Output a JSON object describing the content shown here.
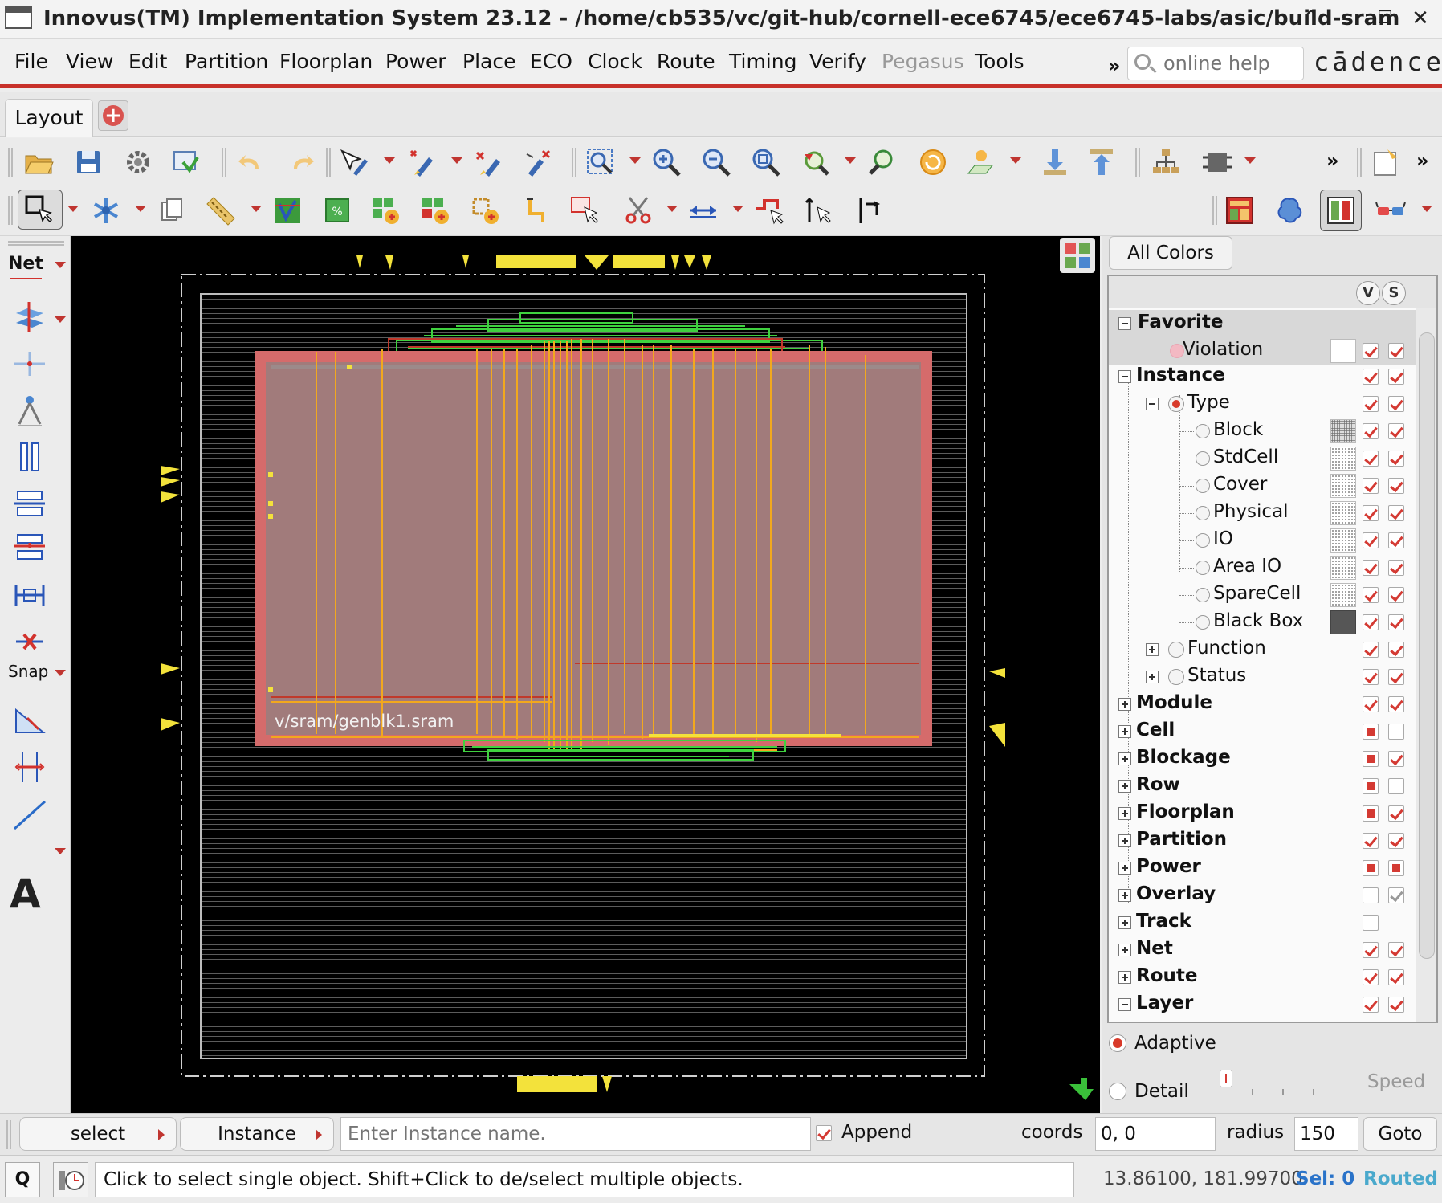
{
  "window": {
    "title": "Innovus(TM) Implementation System 23.12 - /home/cb535/vc/git-hub/cornell-ece6745/ece6745-labs/asic/build-sram",
    "minimize_icon": "chevron-up-icon",
    "restore_icon": "minimize-icon",
    "maximize_icon": "maximize-icon",
    "close_icon": "close-icon"
  },
  "menu": {
    "items": [
      "File",
      "Edit",
      "Partition",
      "Floorplan",
      "Power",
      "Place",
      "ECO",
      "Clock",
      "Route",
      "Timing",
      "Verify",
      "Pegasus",
      "Tools"
    ],
    "view": "View",
    "overflow": "»",
    "search_placeholder": "online help",
    "logo": "cādence"
  },
  "tabs": {
    "active": "Layout",
    "add_icon": "add-tab-icon"
  },
  "left_palette": {
    "net_label": "Net",
    "snap_label": "Snap",
    "text_label": "A"
  },
  "layout_view": {
    "instance_label": "v/sram/genblk1.sram",
    "colors": {
      "die_fill": "#a17b7b",
      "die_edge": "#d56b6b",
      "wire": "#f2a81e",
      "green_wire": "#3fd13f",
      "pin": "#f4e43a"
    }
  },
  "control_panel": {
    "all_colors": "All Colors",
    "v_label": "V",
    "s_label": "S",
    "tree": [
      {
        "label": "Favorite",
        "bold": true,
        "state": "minus"
      },
      {
        "label": "Violation",
        "bold": false
      },
      {
        "label": "Instance",
        "bold": true,
        "state": "minus"
      },
      {
        "label": "Type",
        "bold": false,
        "state": "minus"
      },
      {
        "label": "Block"
      },
      {
        "label": "StdCell"
      },
      {
        "label": "Cover"
      },
      {
        "label": "Physical"
      },
      {
        "label": "IO"
      },
      {
        "label": "Area IO"
      },
      {
        "label": "SpareCell"
      },
      {
        "label": "Black Box"
      },
      {
        "label": "Function",
        "state": "plus"
      },
      {
        "label": "Status",
        "state": "plus"
      },
      {
        "label": "Module",
        "bold": true,
        "state": "plus"
      },
      {
        "label": "Cell",
        "bold": true,
        "state": "plus"
      },
      {
        "label": "Blockage",
        "bold": true,
        "state": "plus"
      },
      {
        "label": "Row",
        "bold": true,
        "state": "plus"
      },
      {
        "label": "Floorplan",
        "bold": true,
        "state": "plus"
      },
      {
        "label": "Partition",
        "bold": true,
        "state": "plus"
      },
      {
        "label": "Power",
        "bold": true,
        "state": "plus"
      },
      {
        "label": "Overlay",
        "bold": true,
        "state": "plus"
      },
      {
        "label": "Track",
        "bold": true,
        "state": "plus"
      },
      {
        "label": "Net",
        "bold": true,
        "state": "plus"
      },
      {
        "label": "Route",
        "bold": true,
        "state": "plus"
      },
      {
        "label": "Layer",
        "bold": true,
        "state": "minus"
      }
    ],
    "adaptive_label": "Adaptive",
    "detail_label": "Detail",
    "speed_label": "Speed"
  },
  "select_bar": {
    "mode": "select",
    "object": "Instance",
    "name_placeholder": "Enter Instance name.",
    "append_label": "Append",
    "append_checked": true,
    "coords_label": "coords",
    "coords_value": "0, 0",
    "radius_label": "radius",
    "radius_value": "150",
    "goto_label": "Goto"
  },
  "status_bar": {
    "q_label": "Q",
    "message": "Click to select single object. Shift+Click to de/select multiple objects.",
    "cursor_xy": "13.86100, 181.99700",
    "selection": "Sel: 0",
    "route_state": "Routed"
  }
}
